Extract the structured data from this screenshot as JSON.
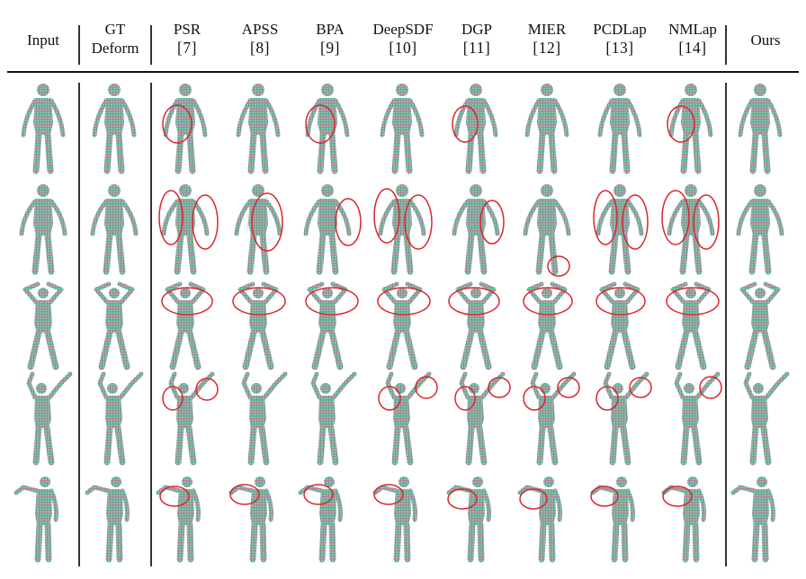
{
  "columns": [
    {
      "id": "input",
      "line1": "Input",
      "line2": ""
    },
    {
      "id": "gt",
      "line1": "GT",
      "line2": "Deform"
    },
    {
      "id": "psr",
      "line1": "PSR",
      "line2": "[7]"
    },
    {
      "id": "apss",
      "line1": "APSS",
      "line2": "[8]"
    },
    {
      "id": "bpa",
      "line1": "BPA",
      "line2": "[9]"
    },
    {
      "id": "deepsdf",
      "line1": "DeepSDF",
      "line2": "[10]"
    },
    {
      "id": "dgp",
      "line1": "DGP",
      "line2": "[11]"
    },
    {
      "id": "mier",
      "line1": "MIER",
      "line2": "[12]"
    },
    {
      "id": "pcdlap",
      "line1": "PCDLap",
      "line2": "[13]"
    },
    {
      "id": "nmlap",
      "line1": "NMLap",
      "line2": "[14]"
    },
    {
      "id": "ours",
      "line1": "Ours",
      "line2": ""
    }
  ],
  "rows": [
    {
      "pose": "arms-down"
    },
    {
      "pose": "arms-out"
    },
    {
      "pose": "hands-on-head"
    },
    {
      "pose": "arm-raised"
    },
    {
      "pose": "arm-forward"
    }
  ],
  "colors": {
    "rule": "#111111",
    "circle": "#d9262c",
    "head": "#3fb88f",
    "torso": "#7fbf86",
    "legs": "#a84a8a"
  }
}
